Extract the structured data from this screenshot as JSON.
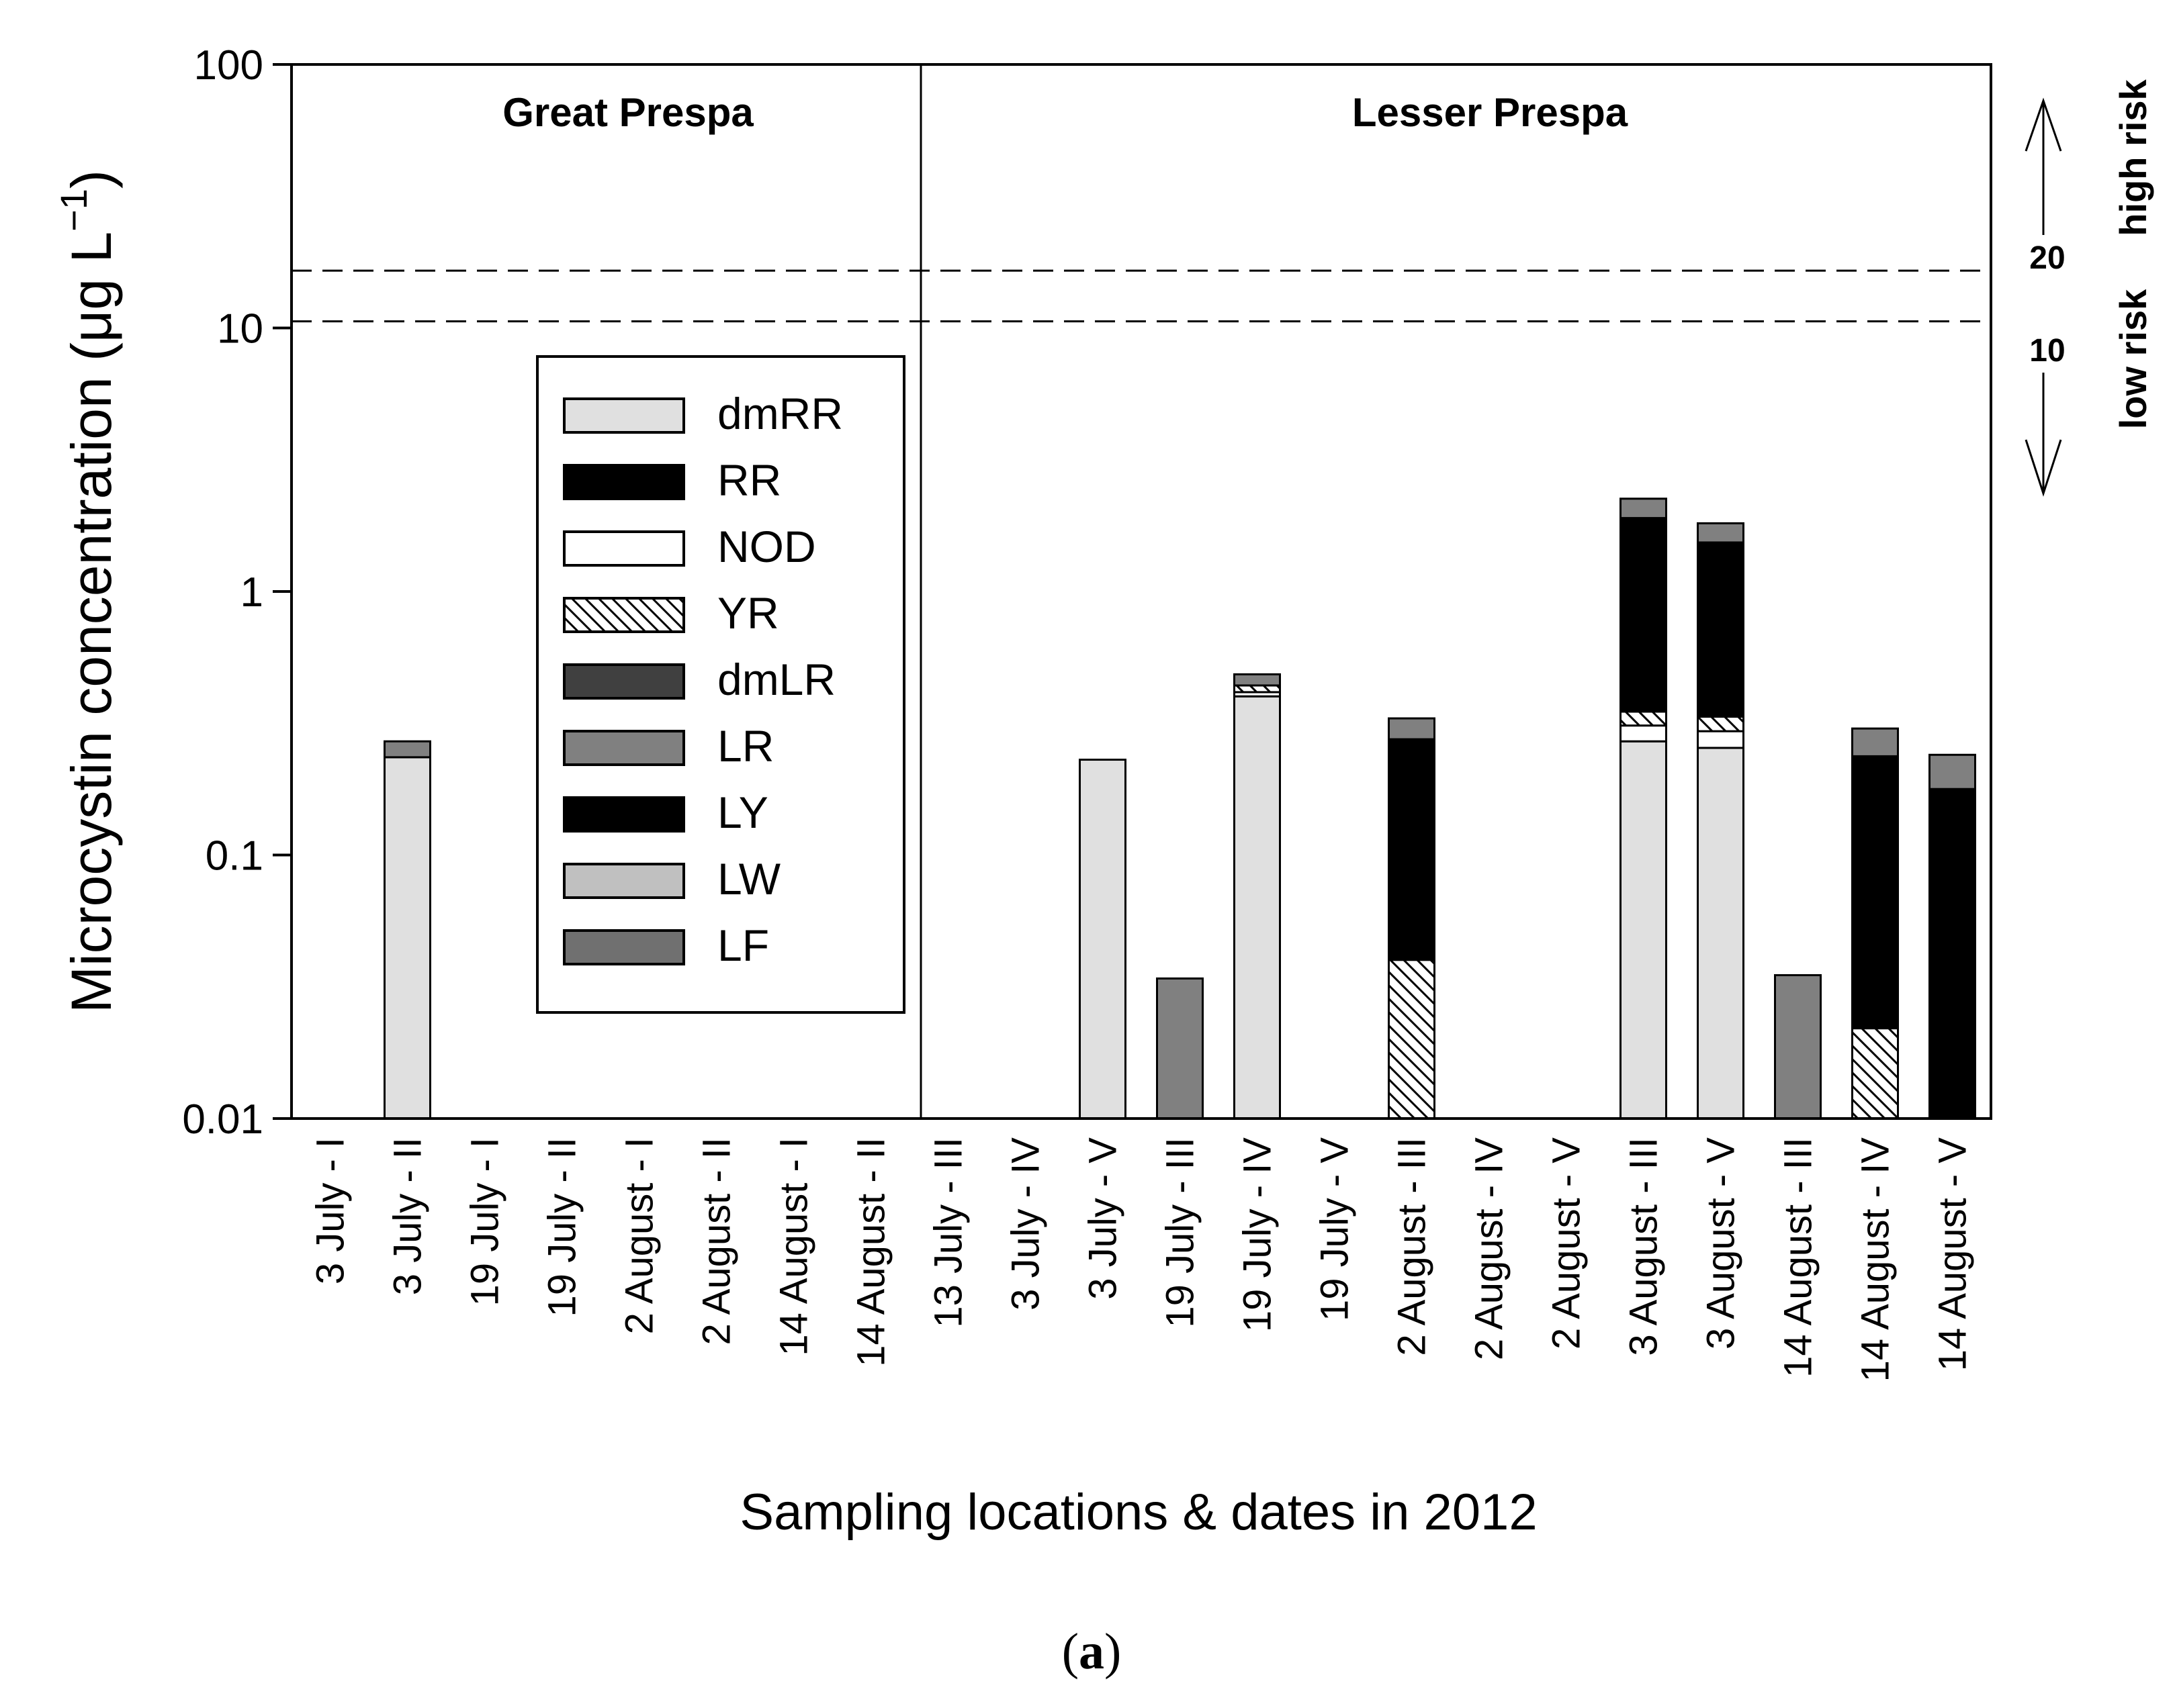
{
  "chart_data": {
    "type": "bar",
    "stacked": true,
    "y_scale": "log",
    "ylabel": "Microcystin concentration (μg L⁻¹)",
    "ylabel_main": "Microcystin concentration (μg L",
    "ylabel_exp": "−1",
    "ylabel_close": ")",
    "xlabel": "Sampling locations & dates in 2012",
    "panel_label_open": "(",
    "panel_label_letter": "a",
    "panel_label_close": ")",
    "ylim": [
      0.01,
      100
    ],
    "y_ticks": [
      {
        "value": 0.01,
        "label": "0.01"
      },
      {
        "value": 0.1,
        "label": "0.1"
      },
      {
        "value": 1,
        "label": "1"
      },
      {
        "value": 10,
        "label": "10"
      },
      {
        "value": 100,
        "label": "100"
      }
    ],
    "regions": [
      {
        "name": "Great Prespa",
        "start": 0,
        "end": 7
      },
      {
        "name": "Lesser Prespa",
        "start": 8,
        "end": 21
      }
    ],
    "thresholds": [
      {
        "value": 10,
        "label": "10",
        "risk_label": "low risk"
      },
      {
        "value": 20,
        "label": "20",
        "risk_label": "high risk"
      }
    ],
    "categories": [
      "3 July - I",
      "3 July - II",
      "19 July - I",
      "19 July - II",
      "2 August - I",
      "2 August - II",
      "14 August - I",
      "14 August - II",
      "13 July - III",
      "3 July - IV",
      "3 July - V",
      "19 July - III",
      "19 July - IV",
      "19 July - V",
      "2 August - III",
      "2 August - IV",
      "2 August - V",
      "3 August - III",
      "3 August - V",
      "14 August - III",
      "14 August - IV",
      "14 August - V"
    ],
    "series": [
      {
        "name": "dmRR",
        "color": "#e0e0e0",
        "pattern": "none",
        "values": [
          0,
          0.235,
          0,
          0,
          0,
          0,
          0,
          0,
          0,
          0,
          0.23,
          0,
          0.4,
          0,
          0,
          0,
          0,
          0.27,
          0.255,
          0,
          0,
          0
        ]
      },
      {
        "name": "RR",
        "color": "#000000",
        "pattern": "none",
        "values": [
          0,
          0,
          0,
          0,
          0,
          0,
          0,
          0,
          0,
          0,
          0,
          0,
          0,
          0,
          0,
          0,
          0,
          0,
          0,
          0,
          0,
          0
        ]
      },
      {
        "name": "NOD",
        "color": "#ffffff",
        "pattern": "none",
        "values": [
          0,
          0,
          0,
          0,
          0,
          0,
          0,
          0,
          0,
          0,
          0,
          0,
          0.015,
          0,
          0,
          0,
          0,
          0.04,
          0.04,
          0,
          0.01,
          0
        ]
      },
      {
        "name": "YR",
        "color": "#ffffff",
        "pattern": "hatch",
        "values": [
          0,
          0,
          0,
          0,
          0,
          0,
          0,
          0,
          0,
          0,
          0,
          0,
          0.025,
          0,
          0.04,
          0,
          0,
          0.04,
          0.04,
          0,
          0.012,
          0
        ]
      },
      {
        "name": "dmLR",
        "color": "#404040",
        "pattern": "none",
        "values": [
          0,
          0,
          0,
          0,
          0,
          0,
          0,
          0,
          0,
          0,
          0,
          0,
          0,
          0,
          0,
          0,
          0,
          0,
          0,
          0,
          0,
          0
        ]
      },
      {
        "name": "LR",
        "color": "#808080",
        "pattern": "none",
        "values": [
          0,
          0.035,
          0,
          0,
          0,
          0,
          0,
          0,
          0,
          0,
          0,
          0.034,
          0.045,
          0,
          0.055,
          0,
          0,
          0.35,
          0.28,
          0.035,
          0.065,
          0.062
        ]
      },
      {
        "name": "LY",
        "color": "#000000",
        "pattern": "none",
        "values": [
          0,
          0,
          0,
          0,
          0,
          0,
          0,
          0,
          0,
          0,
          0,
          0,
          0,
          0,
          0.235,
          0,
          0,
          1.55,
          1.2,
          0,
          0.215,
          0.178
        ]
      },
      {
        "name": "LW",
        "color": "#c0c0c0",
        "pattern": "none",
        "values": [
          0,
          0,
          0,
          0,
          0,
          0,
          0,
          0,
          0,
          0,
          0,
          0,
          0,
          0,
          0,
          0,
          0,
          0,
          0,
          0,
          0,
          0
        ]
      },
      {
        "name": "LF",
        "color": "#707070",
        "pattern": "none",
        "values": [
          0,
          0,
          0,
          0,
          0,
          0,
          0,
          0,
          0,
          0,
          0,
          0,
          0,
          0,
          0,
          0,
          0,
          0,
          0,
          0,
          0,
          0
        ]
      }
    ],
    "draw_order": [
      "dmRR",
      "NOD",
      "YR",
      "LY",
      "RR",
      "dmLR",
      "LW",
      "LF",
      "LR"
    ],
    "grid": false,
    "legend_position": "inside-left"
  }
}
